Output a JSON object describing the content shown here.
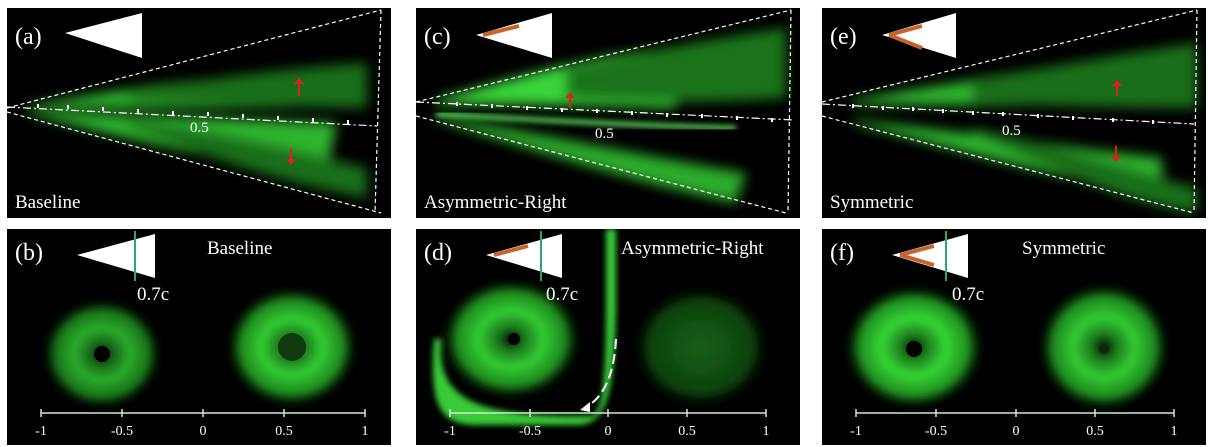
{
  "panels": {
    "a": {
      "label": "(a)",
      "caption": "Baseline",
      "chord_mark": "0.5"
    },
    "b": {
      "label": "(b)",
      "caption": "Baseline",
      "station": "0.7c"
    },
    "c": {
      "label": "(c)",
      "caption": "Asymmetric-Right",
      "chord_mark": "0.5"
    },
    "d": {
      "label": "(d)",
      "caption": "Asymmetric-Right",
      "station": "0.7c"
    },
    "e": {
      "label": "(e)",
      "caption": "Symmetric",
      "chord_mark": "0.5"
    },
    "f": {
      "label": "(f)",
      "caption": "Symmetric",
      "station": "0.7c"
    }
  },
  "spanwise_axis": {
    "ticks": [
      "-1",
      "-0.5",
      "0",
      "0.5",
      "1"
    ]
  },
  "colors": {
    "dye": "#3cff3c",
    "arrow": "#e02020",
    "flap": "#c8642a",
    "station_line": "#2ea86a"
  }
}
